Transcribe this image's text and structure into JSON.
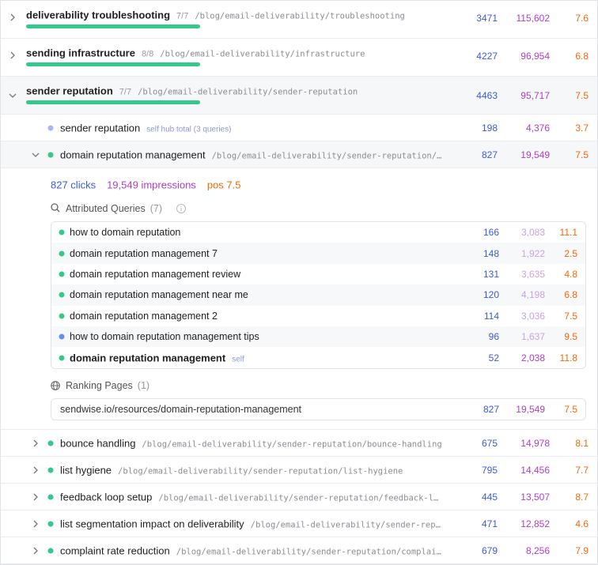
{
  "top_rows": [
    {
      "title": "deliverability troubleshooting",
      "count": "7/7",
      "path": "/blog/email-deliverability/troubleshooting",
      "clicks": "3471",
      "impressions": "115,602",
      "position": "7.6"
    },
    {
      "title": "sending infrastructure",
      "count": "8/8",
      "path": "/blog/email-deliverability/infrastructure",
      "clicks": "4227",
      "impressions": "96,954",
      "position": "6.8"
    },
    {
      "title": "sender reputation",
      "count": "7/7",
      "path": "/blog/email-deliverability/sender-reputation",
      "clicks": "4463",
      "impressions": "95,717",
      "position": "7.5"
    }
  ],
  "hub_row": {
    "title": "sender reputation",
    "note": "self hub total (3 queries)",
    "clicks": "198",
    "impressions": "4,376",
    "position": "3.7",
    "dot": "#a9b4f5"
  },
  "expanded_row": {
    "title": "domain reputation management",
    "path": "/blog/email-deliverability/sender-reputation/…",
    "clicks": "827",
    "impressions": "19,549",
    "position": "7.5",
    "dot": "#34c98a",
    "summary": {
      "clicks": "827 clicks",
      "impressions": "19,549 impressions",
      "position": "pos 7.5"
    },
    "queries": {
      "title": "Attributed Queries",
      "count": "(7)",
      "rows": [
        {
          "query": "how to domain reputation",
          "clicks": "166",
          "impressions": "3,083",
          "position": "11.1",
          "dot": "#34c98a"
        },
        {
          "query": "domain reputation management 7",
          "clicks": "148",
          "impressions": "1,922",
          "position": "2.5",
          "dot": "#34c98a"
        },
        {
          "query": "domain reputation management review",
          "clicks": "131",
          "impressions": "3,635",
          "position": "4.8",
          "dot": "#34c98a"
        },
        {
          "query": "domain reputation management near me",
          "clicks": "120",
          "impressions": "4,198",
          "position": "6.8",
          "dot": "#34c98a"
        },
        {
          "query": "domain reputation management 2",
          "clicks": "114",
          "impressions": "3,036",
          "position": "7.5",
          "dot": "#34c98a"
        },
        {
          "query": "how to domain reputation management tips",
          "clicks": "96",
          "impressions": "1,637",
          "position": "9.5",
          "dot": "#6b8cf0"
        },
        {
          "query": "domain reputation management",
          "tag": "self",
          "clicks": "52",
          "impressions": "2,038",
          "position": "11.8",
          "dot": "#34c98a"
        }
      ]
    },
    "pages": {
      "title": "Ranking Pages",
      "count": "(1)",
      "rows": [
        {
          "url": "sendwise.io/resources/domain-reputation-management",
          "clicks": "827",
          "impressions": "19,549",
          "position": "7.5"
        }
      ]
    }
  },
  "child_rows": [
    {
      "title": "bounce handling",
      "path": "/blog/email-deliverability/sender-reputation/bounce-handling",
      "clicks": "675",
      "impressions": "14,978",
      "position": "8.1",
      "dot": "#34c98a"
    },
    {
      "title": "list hygiene",
      "path": "/blog/email-deliverability/sender-reputation/list-hygiene",
      "clicks": "795",
      "impressions": "14,456",
      "position": "7.7",
      "dot": "#34c98a"
    },
    {
      "title": "feedback loop setup",
      "path": "/blog/email-deliverability/sender-reputation/feedback-l…",
      "clicks": "445",
      "impressions": "13,507",
      "position": "8.7",
      "dot": "#34c98a"
    },
    {
      "title": "list segmentation impact on deliverability",
      "path": "/blog/email-deliverability/sender-rep…",
      "clicks": "471",
      "impressions": "12,852",
      "position": "4.6",
      "dot": "#34c98a"
    },
    {
      "title": "complaint rate reduction",
      "path": "/blog/email-deliverability/sender-reputation/complai…",
      "clicks": "679",
      "impressions": "8,256",
      "position": "7.9",
      "dot": "#34c98a"
    }
  ]
}
